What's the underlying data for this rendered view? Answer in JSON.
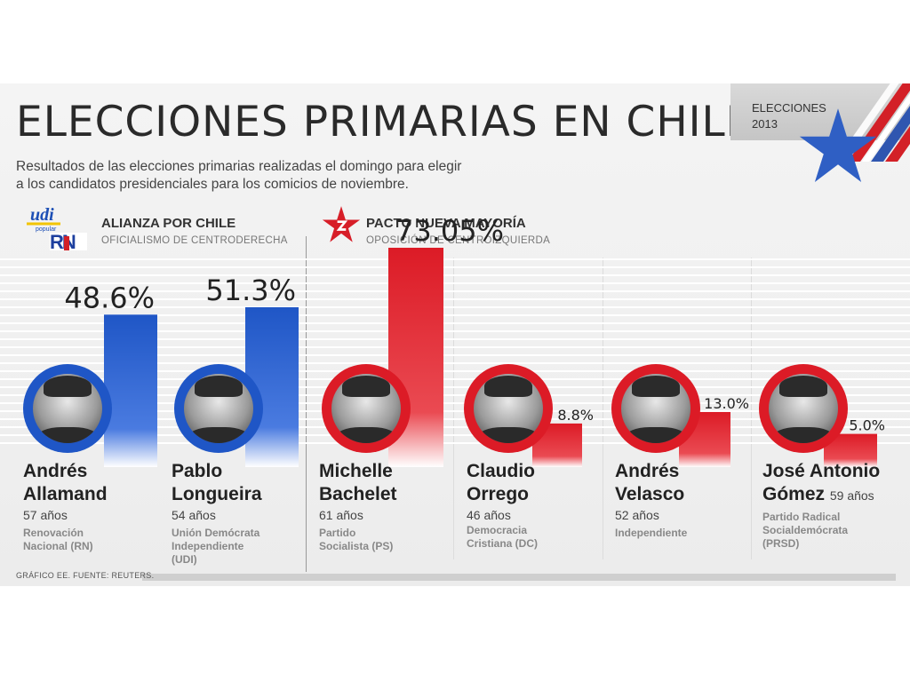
{
  "header": {
    "title": "ELECCIONES PRIMARIAS EN CHILE",
    "subtitle_line1": "Resultados de las elecciones primarias realizadas el domingo para elegir",
    "subtitle_line2": "a los candidatos presidenciales para los comicios de noviembre.",
    "badge_label": "ELECCIONES",
    "badge_year": "2013"
  },
  "coalitions": [
    {
      "title": "ALIANZA POR CHILE",
      "subtitle": "OFICIALISMO DE CENTRODERECHA",
      "color": "#1f56c6"
    },
    {
      "title": "PACTO NUEVA MAYORÍA",
      "subtitle": "OPOSICIÓN DE CENTROIZQUIERDA",
      "color": "#dc1b26"
    }
  ],
  "logos": {
    "udi": "udi",
    "udi_small": "popular",
    "rn": "RN"
  },
  "chart_data": {
    "type": "bar",
    "categories": [
      "Andrés Allamand",
      "Pablo Longueira",
      "Michelle Bachelet",
      "Claudio Orrego",
      "Andrés Velasco",
      "José Antonio Gómez"
    ],
    "values": [
      48.6,
      51.3,
      73.05,
      8.8,
      13.0,
      5.0
    ],
    "value_labels": [
      "48.6%",
      "51.3%",
      "73.05%",
      "8.8%",
      "13.0%",
      "5.0%"
    ],
    "groups": [
      "ALIANZA POR CHILE",
      "ALIANZA POR CHILE",
      "PACTO NUEVA MAYORÍA",
      "PACTO NUEVA MAYORÍA",
      "PACTO NUEVA MAYORÍA",
      "PACTO NUEVA MAYORÍA"
    ]
  },
  "candidates": [
    {
      "name1": "Andrés",
      "name2": "Allamand",
      "age": "57 años",
      "party1": "Renovación",
      "party2": "Nacional (RN)",
      "party3": "",
      "color": "#1f56c6"
    },
    {
      "name1": "Pablo",
      "name2": "Longueira",
      "age": "54 años",
      "party1": "Unión Demócrata",
      "party2": "Independiente",
      "party3": "(UDI)",
      "color": "#1f56c6"
    },
    {
      "name1": "Michelle",
      "name2": "Bachelet",
      "age": "61 años",
      "party1": "Partido",
      "party2": "Socialista (PS)",
      "party3": "",
      "color": "#dc1b26"
    },
    {
      "name1": "Claudio",
      "name2": "Orrego",
      "age": "46 años",
      "party1": "Democracia",
      "party2": "Cristiana (DC)",
      "party3": "",
      "color": "#dc1b26"
    },
    {
      "name1": "Andrés",
      "name2": "Velasco",
      "age": "52 años",
      "party1": "Independiente",
      "party2": "",
      "party3": "",
      "color": "#dc1b26"
    },
    {
      "name1": "José Antonio",
      "name2": "Gómez",
      "age": "59 años",
      "party1": "Partido Radical",
      "party2": "Socialdemócrata",
      "party3": "(PRSD)",
      "color": "#dc1b26"
    }
  ],
  "footer": {
    "source": "GRÁFICO EE. FUENTE: REUTERS."
  }
}
